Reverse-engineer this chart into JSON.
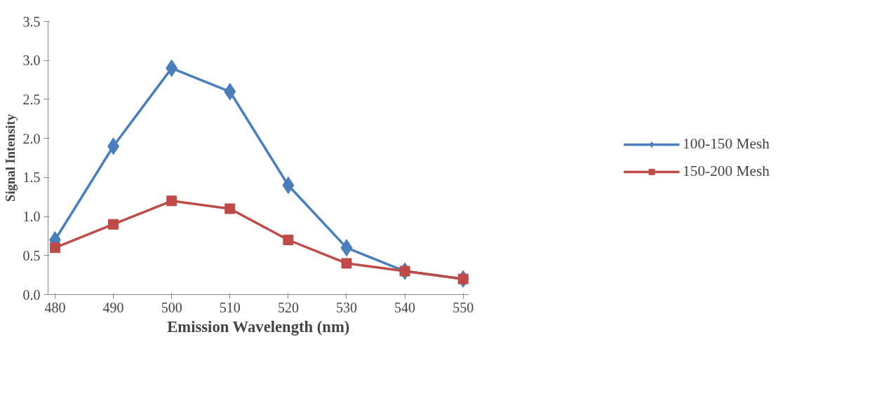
{
  "chart_data": {
    "type": "line",
    "xlabel": "Emission Wavelength (nm)",
    "ylabel": "Signal Intensity",
    "x": [
      480,
      490,
      500,
      510,
      520,
      530,
      540,
      550
    ],
    "series": [
      {
        "name": "100-150 Mesh",
        "color": "#4a7ebb",
        "marker": "diamond",
        "values": [
          0.7,
          1.9,
          2.9,
          2.6,
          1.4,
          0.6,
          0.3,
          0.2
        ]
      },
      {
        "name": "150-200 Mesh",
        "color": "#be4b48",
        "marker": "square",
        "values": [
          0.6,
          0.9,
          1.2,
          1.1,
          0.7,
          0.4,
          0.3,
          0.2
        ]
      }
    ],
    "xlim": [
      478.8,
      551
    ],
    "xticks": [
      480,
      490,
      500,
      510,
      520,
      530,
      540,
      550
    ],
    "ylim": [
      0,
      3.5
    ],
    "yticks": [
      {
        "value": 0,
        "label": "0.0"
      },
      {
        "value": 0.5,
        "label": "0.5"
      },
      {
        "value": 1,
        "label": "1.0"
      },
      {
        "value": 1.5,
        "label": "1.5"
      },
      {
        "value": 2,
        "label": "2.0"
      },
      {
        "value": 2.5,
        "label": "2.5"
      },
      {
        "value": 3,
        "label": "3.0"
      },
      {
        "value": 3.5,
        "label": "3.5"
      }
    ],
    "grid": false,
    "legend": "right"
  }
}
